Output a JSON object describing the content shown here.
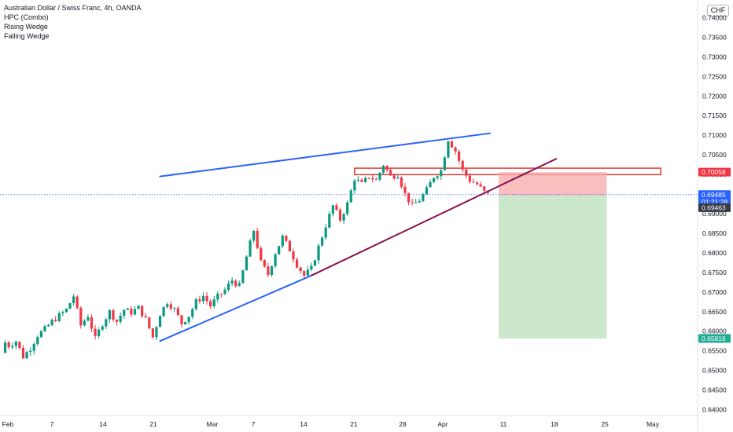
{
  "header": {
    "title": "Australian Dollar / Swiss Franc, 4h, OANDA",
    "indicators": [
      "HPC (Combo)",
      "Rising Wedge",
      "Falling Wedge"
    ],
    "currency": "CHF"
  },
  "chart_data": {
    "type": "candlestick",
    "symbol": "AUDCHF",
    "y_axis": {
      "ticks": [
        "0.74000",
        "0.73500",
        "0.73000",
        "0.72500",
        "0.72000",
        "0.71500",
        "0.71000",
        "0.70500",
        "0.70000",
        "0.69500",
        "0.69000",
        "0.68500",
        "0.68000",
        "0.67500",
        "0.67000",
        "0.66500",
        "0.66000",
        "0.65500",
        "0.65000",
        "0.64500",
        "0.64000"
      ],
      "ylim": [
        0.6385,
        0.7445
      ]
    },
    "x_axis": {
      "ticks": [
        "Feb",
        "7",
        "14",
        "21",
        "Mar",
        "7",
        "14",
        "21",
        "28",
        "Apr",
        "11",
        "18",
        "25",
        "May"
      ]
    },
    "price_labels": [
      {
        "value": 0.70058,
        "text": "0.70058",
        "color": "#f23645"
      },
      {
        "value": 0.69485,
        "text": "0.69485",
        "sub": "01:21:28",
        "color": "#2962ff"
      },
      {
        "value": 0.69463,
        "text": "0.69463",
        "color": "#363a45"
      },
      {
        "value": 0.65816,
        "text": "0.65816",
        "color": "#22ab94"
      }
    ],
    "current_price": 0.69485,
    "price_series": [
      {
        "t": 0,
        "p": 0.6545
      },
      {
        "t": 0.3,
        "p": 0.6575
      },
      {
        "t": 1,
        "p": 0.6563
      },
      {
        "t": 2,
        "p": 0.6575
      },
      {
        "t": 3,
        "p": 0.6535
      },
      {
        "t": 4,
        "p": 0.6557
      },
      {
        "t": 5,
        "p": 0.659
      },
      {
        "t": 6,
        "p": 0.6605
      },
      {
        "t": 7,
        "p": 0.6625
      },
      {
        "t": 8,
        "p": 0.664
      },
      {
        "t": 9,
        "p": 0.6655
      },
      {
        "t": 10,
        "p": 0.669
      },
      {
        "t": 11,
        "p": 0.6615
      },
      {
        "t": 12,
        "p": 0.664
      },
      {
        "t": 13,
        "p": 0.658
      },
      {
        "t": 14,
        "p": 0.662
      },
      {
        "t": 15,
        "p": 0.665
      },
      {
        "t": 16,
        "p": 0.6625
      },
      {
        "t": 17,
        "p": 0.6655
      },
      {
        "t": 18,
        "p": 0.6648
      },
      {
        "t": 19,
        "p": 0.666
      },
      {
        "t": 20,
        "p": 0.663
      },
      {
        "t": 21,
        "p": 0.6585
      },
      {
        "t": 22,
        "p": 0.6645
      },
      {
        "t": 23,
        "p": 0.6675
      },
      {
        "t": 24,
        "p": 0.6655
      },
      {
        "t": 25,
        "p": 0.662
      },
      {
        "t": 26,
        "p": 0.664
      },
      {
        "t": 27,
        "p": 0.6675
      },
      {
        "t": 28,
        "p": 0.669
      },
      {
        "t": 29,
        "p": 0.6665
      },
      {
        "t": 30,
        "p": 0.6688
      },
      {
        "t": 31,
        "p": 0.6705
      },
      {
        "t": 32,
        "p": 0.673
      },
      {
        "t": 33,
        "p": 0.6715
      },
      {
        "t": 34,
        "p": 0.679
      },
      {
        "t": 35,
        "p": 0.6858
      },
      {
        "t": 36,
        "p": 0.6775
      },
      {
        "t": 37,
        "p": 0.6745
      },
      {
        "t": 38,
        "p": 0.68
      },
      {
        "t": 39,
        "p": 0.684
      },
      {
        "t": 40,
        "p": 0.6808
      },
      {
        "t": 41,
        "p": 0.677
      },
      {
        "t": 42,
        "p": 0.6742
      },
      {
        "t": 43,
        "p": 0.676
      },
      {
        "t": 44,
        "p": 0.6815
      },
      {
        "t": 45,
        "p": 0.687
      },
      {
        "t": 46,
        "p": 0.692
      },
      {
        "t": 47,
        "p": 0.6885
      },
      {
        "t": 48,
        "p": 0.6925
      },
      {
        "t": 49,
        "p": 0.699
      },
      {
        "t": 50,
        "p": 0.6975
      },
      {
        "t": 51,
        "p": 0.6995
      },
      {
        "t": 52,
        "p": 0.6985
      },
      {
        "t": 53,
        "p": 0.7025
      },
      {
        "t": 54,
        "p": 0.6995
      },
      {
        "t": 55,
        "p": 0.7
      },
      {
        "t": 56,
        "p": 0.695
      },
      {
        "t": 57,
        "p": 0.692
      },
      {
        "t": 58,
        "p": 0.6935
      },
      {
        "t": 59,
        "p": 0.696
      },
      {
        "t": 60,
        "p": 0.6995
      },
      {
        "t": 61,
        "p": 0.701
      },
      {
        "t": 62,
        "p": 0.709
      },
      {
        "t": 63,
        "p": 0.706
      },
      {
        "t": 64,
        "p": 0.701
      },
      {
        "t": 65,
        "p": 0.6985
      },
      {
        "t": 66,
        "p": 0.6975
      },
      {
        "t": 67,
        "p": 0.6955
      },
      {
        "t": 67.5,
        "p": 0.69485
      }
    ],
    "drawings": [
      {
        "name": "wedge-upper-trendline",
        "color": "#2962ff",
        "points": [
          [
            22,
            0.6995
          ],
          [
            67.8,
            0.7105
          ]
        ]
      },
      {
        "name": "wedge-lower-trendline",
        "color": "#2962ff",
        "points": [
          [
            22,
            0.6575
          ],
          [
            43,
            0.6742
          ]
        ]
      },
      {
        "name": "wedge-lower-trendline-extension",
        "color": "#880e4f",
        "points": [
          [
            43,
            0.6742
          ],
          [
            77,
            0.704
          ]
        ]
      },
      {
        "name": "resistance-zone",
        "color": "#e53935",
        "from": [
          49,
          0.7016
        ],
        "to": [
          91.5,
          0.69995
        ]
      },
      {
        "name": "short-position-stop-zone",
        "color": "#f7a8a8",
        "from": [
          69,
          0.70058
        ],
        "to": [
          84,
          0.69463
        ]
      },
      {
        "name": "short-position-target-zone",
        "color": "#c8e6c9",
        "from": [
          69,
          0.69463
        ],
        "to": [
          84,
          0.65816
        ]
      }
    ]
  },
  "colors": {
    "up_candle": "#089981",
    "down_candle": "#f23645",
    "trendline_blue": "#2962ff",
    "trendline_maroon": "#880e4f",
    "current_price_dotted": "#2962ff"
  }
}
